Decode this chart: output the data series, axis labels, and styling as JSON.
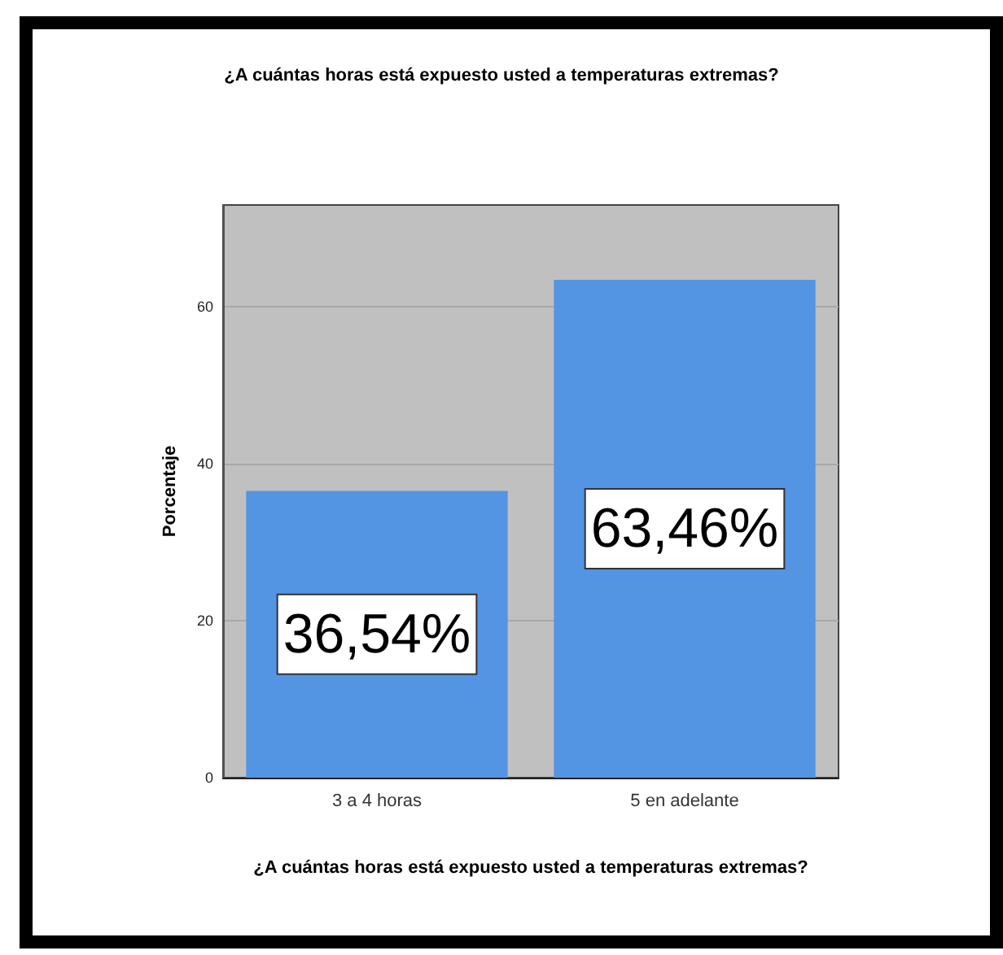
{
  "chart_data": {
    "type": "bar",
    "title": "¿A cuántas horas está expuesto usted a temperaturas extremas?",
    "xlabel": "¿A cuántas horas está expuesto usted a temperaturas extremas?",
    "ylabel": "Porcentaje",
    "categories": [
      "3 a 4 horas",
      "5 en adelante"
    ],
    "values": [
      36.54,
      63.46
    ],
    "color": "#5394e3",
    "value_labels": [
      "36,54%",
      "63,46%"
    ],
    "ylim": [
      0,
      73
    ],
    "yticks": [
      0,
      20,
      40,
      60
    ],
    "grid": "y"
  }
}
